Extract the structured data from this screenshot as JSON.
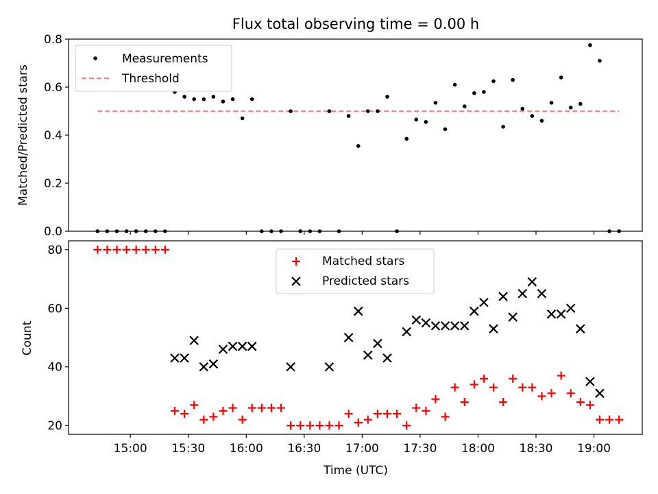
{
  "title": "Flux total observing time = 0.00 h",
  "chart_data": [
    {
      "type": "scatter",
      "panel": "top",
      "ylabel": "Matched/Predicted stars",
      "xlabel": "",
      "ylim": [
        0,
        0.8
      ],
      "yticks": [
        "0.0",
        "0.2",
        "0.4",
        "0.6",
        "0.8"
      ],
      "legend_position": "upper left",
      "legend": [
        "Measurements",
        "Threshold"
      ],
      "threshold": {
        "name": "Threshold",
        "value": 0.5,
        "x_start": "14:43",
        "x_end": "19:13",
        "color": "#ff7f7f"
      },
      "series": [
        {
          "name": "Measurements",
          "color": "#000000",
          "marker": "dot",
          "points": [
            [
              "14:43",
              0.0
            ],
            [
              "14:48",
              0.0
            ],
            [
              "14:53",
              0.0
            ],
            [
              "14:58",
              0.0
            ],
            [
              "15:03",
              0.0
            ],
            [
              "15:08",
              0.0
            ],
            [
              "15:13",
              0.0
            ],
            [
              "15:18",
              0.0
            ],
            [
              "15:23",
              0.58
            ],
            [
              "15:28",
              0.56
            ],
            [
              "15:33",
              0.55
            ],
            [
              "15:38",
              0.55
            ],
            [
              "15:43",
              0.56
            ],
            [
              "15:48",
              0.54
            ],
            [
              "15:53",
              0.55
            ],
            [
              "15:58",
              0.47
            ],
            [
              "16:03",
              0.55
            ],
            [
              "16:08",
              0.0
            ],
            [
              "16:13",
              0.0
            ],
            [
              "16:18",
              0.0
            ],
            [
              "16:23",
              0.5
            ],
            [
              "16:28",
              0.0
            ],
            [
              "16:33",
              0.0
            ],
            [
              "16:38",
              0.0
            ],
            [
              "16:43",
              0.5
            ],
            [
              "16:48",
              0.0
            ],
            [
              "16:53",
              0.48
            ],
            [
              "16:58",
              0.355
            ],
            [
              "17:03",
              0.5
            ],
            [
              "17:08",
              0.5
            ],
            [
              "17:13",
              0.56
            ],
            [
              "17:18",
              0.0
            ],
            [
              "17:23",
              0.385
            ],
            [
              "17:28",
              0.465
            ],
            [
              "17:33",
              0.455
            ],
            [
              "17:38",
              0.535
            ],
            [
              "17:43",
              0.425
            ],
            [
              "17:48",
              0.61
            ],
            [
              "17:53",
              0.52
            ],
            [
              "17:58",
              0.575
            ],
            [
              "18:03",
              0.58
            ],
            [
              "18:08",
              0.625
            ],
            [
              "18:13",
              0.435
            ],
            [
              "18:18",
              0.63
            ],
            [
              "18:23",
              0.51
            ],
            [
              "18:28",
              0.48
            ],
            [
              "18:33",
              0.46
            ],
            [
              "18:38",
              0.535
            ],
            [
              "18:43",
              0.64
            ],
            [
              "18:48",
              0.515
            ],
            [
              "18:53",
              0.53
            ],
            [
              "18:58",
              0.775
            ],
            [
              "19:03",
              0.71
            ],
            [
              "19:08",
              0.0
            ],
            [
              "19:13",
              0.0
            ]
          ]
        }
      ]
    },
    {
      "type": "scatter",
      "panel": "bottom",
      "ylabel": "Count",
      "xlabel": "Time (UTC)",
      "ylim": [
        17,
        83
      ],
      "yticks": [
        "20",
        "40",
        "60",
        "80"
      ],
      "xticks": [
        "15:00",
        "15:30",
        "16:00",
        "16:30",
        "17:00",
        "17:30",
        "18:00",
        "18:30",
        "19:00"
      ],
      "xlim": [
        "14:28",
        "19:25"
      ],
      "legend_position": "upper center",
      "legend": [
        "Matched stars",
        "Predicted stars"
      ],
      "series": [
        {
          "name": "Matched stars",
          "color": "#ff0000",
          "marker": "plus",
          "points": [
            [
              "14:43",
              80
            ],
            [
              "14:48",
              80
            ],
            [
              "14:53",
              80
            ],
            [
              "14:58",
              80
            ],
            [
              "15:03",
              80
            ],
            [
              "15:08",
              80
            ],
            [
              "15:13",
              80
            ],
            [
              "15:18",
              80
            ],
            [
              "15:23",
              25
            ],
            [
              "15:28",
              24
            ],
            [
              "15:33",
              27
            ],
            [
              "15:38",
              22
            ],
            [
              "15:43",
              23
            ],
            [
              "15:48",
              25
            ],
            [
              "15:53",
              26
            ],
            [
              "15:58",
              22
            ],
            [
              "16:03",
              26
            ],
            [
              "16:08",
              26
            ],
            [
              "16:13",
              26
            ],
            [
              "16:18",
              26
            ],
            [
              "16:23",
              20
            ],
            [
              "16:28",
              20
            ],
            [
              "16:33",
              20
            ],
            [
              "16:38",
              20
            ],
            [
              "16:43",
              20
            ],
            [
              "16:48",
              20
            ],
            [
              "16:53",
              24
            ],
            [
              "16:58",
              21
            ],
            [
              "17:03",
              22
            ],
            [
              "17:08",
              24
            ],
            [
              "17:13",
              24
            ],
            [
              "17:18",
              24
            ],
            [
              "17:23",
              20
            ],
            [
              "17:28",
              26
            ],
            [
              "17:33",
              25
            ],
            [
              "17:38",
              29
            ],
            [
              "17:43",
              23
            ],
            [
              "17:48",
              33
            ],
            [
              "17:53",
              28
            ],
            [
              "17:58",
              34
            ],
            [
              "18:03",
              36
            ],
            [
              "18:08",
              33
            ],
            [
              "18:13",
              28
            ],
            [
              "18:18",
              36
            ],
            [
              "18:23",
              33
            ],
            [
              "18:28",
              33
            ],
            [
              "18:33",
              30
            ],
            [
              "18:38",
              31
            ],
            [
              "18:43",
              37
            ],
            [
              "18:48",
              31
            ],
            [
              "18:53",
              28
            ],
            [
              "18:58",
              27
            ],
            [
              "19:03",
              22
            ],
            [
              "19:08",
              22
            ],
            [
              "19:13",
              22
            ]
          ]
        },
        {
          "name": "Predicted stars",
          "color": "#000000",
          "marker": "x",
          "points": [
            [
              "15:23",
              43
            ],
            [
              "15:28",
              43
            ],
            [
              "15:33",
              49
            ],
            [
              "15:38",
              40
            ],
            [
              "15:43",
              41
            ],
            [
              "15:48",
              46
            ],
            [
              "15:53",
              47
            ],
            [
              "15:58",
              47
            ],
            [
              "16:03",
              47
            ],
            [
              "16:23",
              40
            ],
            [
              "16:43",
              40
            ],
            [
              "16:53",
              50
            ],
            [
              "16:58",
              59
            ],
            [
              "17:03",
              44
            ],
            [
              "17:08",
              48
            ],
            [
              "17:13",
              43
            ],
            [
              "17:23",
              52
            ],
            [
              "17:28",
              56
            ],
            [
              "17:33",
              55
            ],
            [
              "17:38",
              54
            ],
            [
              "17:43",
              54
            ],
            [
              "17:48",
              54
            ],
            [
              "17:53",
              54
            ],
            [
              "17:58",
              59
            ],
            [
              "18:03",
              62
            ],
            [
              "18:08",
              53
            ],
            [
              "18:13",
              64
            ],
            [
              "18:18",
              57
            ],
            [
              "18:23",
              65
            ],
            [
              "18:28",
              69
            ],
            [
              "18:33",
              65
            ],
            [
              "18:38",
              58
            ],
            [
              "18:43",
              58
            ],
            [
              "18:48",
              60
            ],
            [
              "18:53",
              53
            ],
            [
              "18:58",
              35
            ],
            [
              "19:03",
              31
            ]
          ]
        }
      ]
    }
  ]
}
